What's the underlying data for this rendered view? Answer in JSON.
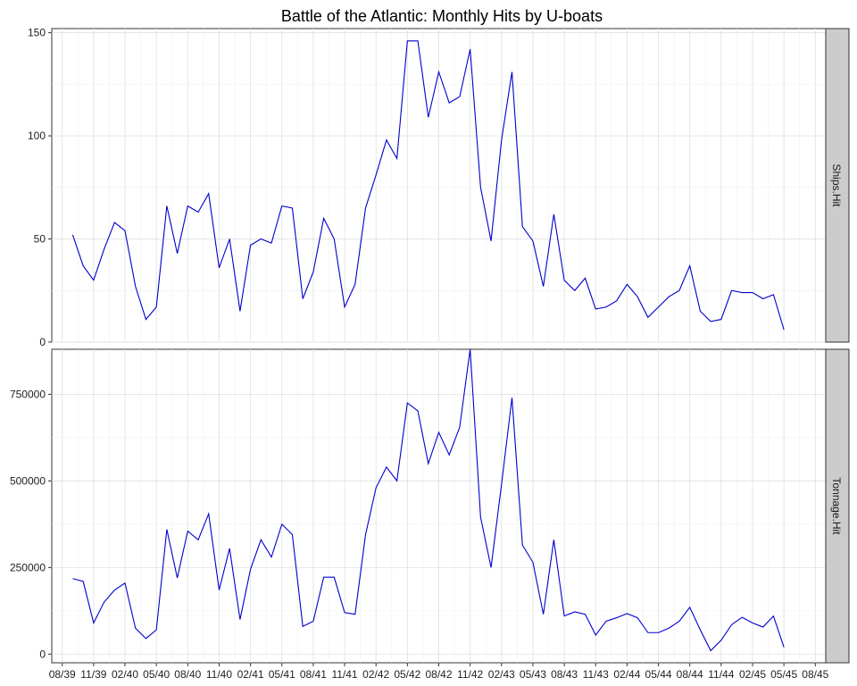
{
  "chart_data": {
    "type": "line",
    "title": "Battle of the Atlantic: Monthly Hits by U-boats",
    "x_tick_labels": [
      "08/39",
      "11/39",
      "02/40",
      "05/40",
      "08/40",
      "11/40",
      "02/41",
      "05/41",
      "08/41",
      "11/41",
      "02/42",
      "05/42",
      "08/42",
      "11/42",
      "02/43",
      "05/43",
      "08/43",
      "11/43",
      "02/44",
      "05/44",
      "08/44",
      "11/44",
      "02/45",
      "05/45",
      "08/45"
    ],
    "x": [
      "09/39",
      "10/39",
      "11/39",
      "12/39",
      "01/40",
      "02/40",
      "03/40",
      "04/40",
      "05/40",
      "06/40",
      "07/40",
      "08/40",
      "09/40",
      "10/40",
      "11/40",
      "12/40",
      "01/41",
      "02/41",
      "03/41",
      "04/41",
      "05/41",
      "06/41",
      "07/41",
      "08/41",
      "09/41",
      "10/41",
      "11/41",
      "12/41",
      "01/42",
      "02/42",
      "03/42",
      "04/42",
      "05/42",
      "06/42",
      "07/42",
      "08/42",
      "09/42",
      "10/42",
      "11/42",
      "12/42",
      "01/43",
      "02/43",
      "03/43",
      "04/43",
      "05/43",
      "06/43",
      "07/43",
      "08/43",
      "09/43",
      "10/43",
      "11/43",
      "12/43",
      "01/44",
      "02/44",
      "03/44",
      "04/44",
      "05/44",
      "06/44",
      "07/44",
      "08/44",
      "09/44",
      "10/44",
      "11/44",
      "12/44",
      "01/45",
      "02/45",
      "03/45",
      "04/45",
      "05/45"
    ],
    "line_color": "#0000cd",
    "grid": true,
    "panels": [
      {
        "strip_label": "Ships.Hit",
        "ylim": [
          0,
          152
        ],
        "y_ticks": [
          0,
          50,
          100,
          150
        ],
        "y_tick_labels": [
          "0",
          "50",
          "100",
          "150"
        ],
        "values": [
          52,
          37,
          30,
          45,
          58,
          54,
          27,
          11,
          17,
          66,
          43,
          66,
          63,
          72,
          36,
          50,
          15,
          47,
          50,
          48,
          66,
          65,
          21,
          34,
          60,
          50,
          17,
          28,
          65,
          81,
          98,
          89,
          146,
          146,
          109,
          131,
          116,
          119,
          142,
          75,
          49,
          98,
          131,
          56,
          49,
          27,
          62,
          30,
          25,
          31,
          16,
          17,
          20,
          28,
          22,
          12,
          17,
          22,
          25,
          37,
          15,
          10,
          11,
          25,
          24,
          24,
          21,
          23,
          6
        ]
      },
      {
        "strip_label": "Tonnage.Hit",
        "ylim": [
          -25000,
          880000
        ],
        "y_ticks": [
          0,
          250000,
          500000,
          750000
        ],
        "y_tick_labels": [
          "0",
          "250000",
          "500000",
          "750000"
        ],
        "values": [
          218000,
          210000,
          90000,
          150000,
          185000,
          205000,
          75000,
          45000,
          70000,
          360000,
          220000,
          355000,
          330000,
          405000,
          185000,
          305000,
          100000,
          245000,
          330000,
          280000,
          375000,
          345000,
          80000,
          95000,
          222000,
          222000,
          120000,
          115000,
          345000,
          480000,
          540000,
          500000,
          725000,
          702000,
          550000,
          640000,
          575000,
          655000,
          880000,
          395000,
          250000,
          490000,
          740000,
          315000,
          265000,
          115000,
          330000,
          110000,
          122000,
          115000,
          55000,
          95000,
          105000,
          117000,
          105000,
          62000,
          62000,
          75000,
          95000,
          135000,
          70000,
          10000,
          40000,
          85000,
          106000,
          90000,
          78000,
          110000,
          20000
        ]
      }
    ]
  }
}
